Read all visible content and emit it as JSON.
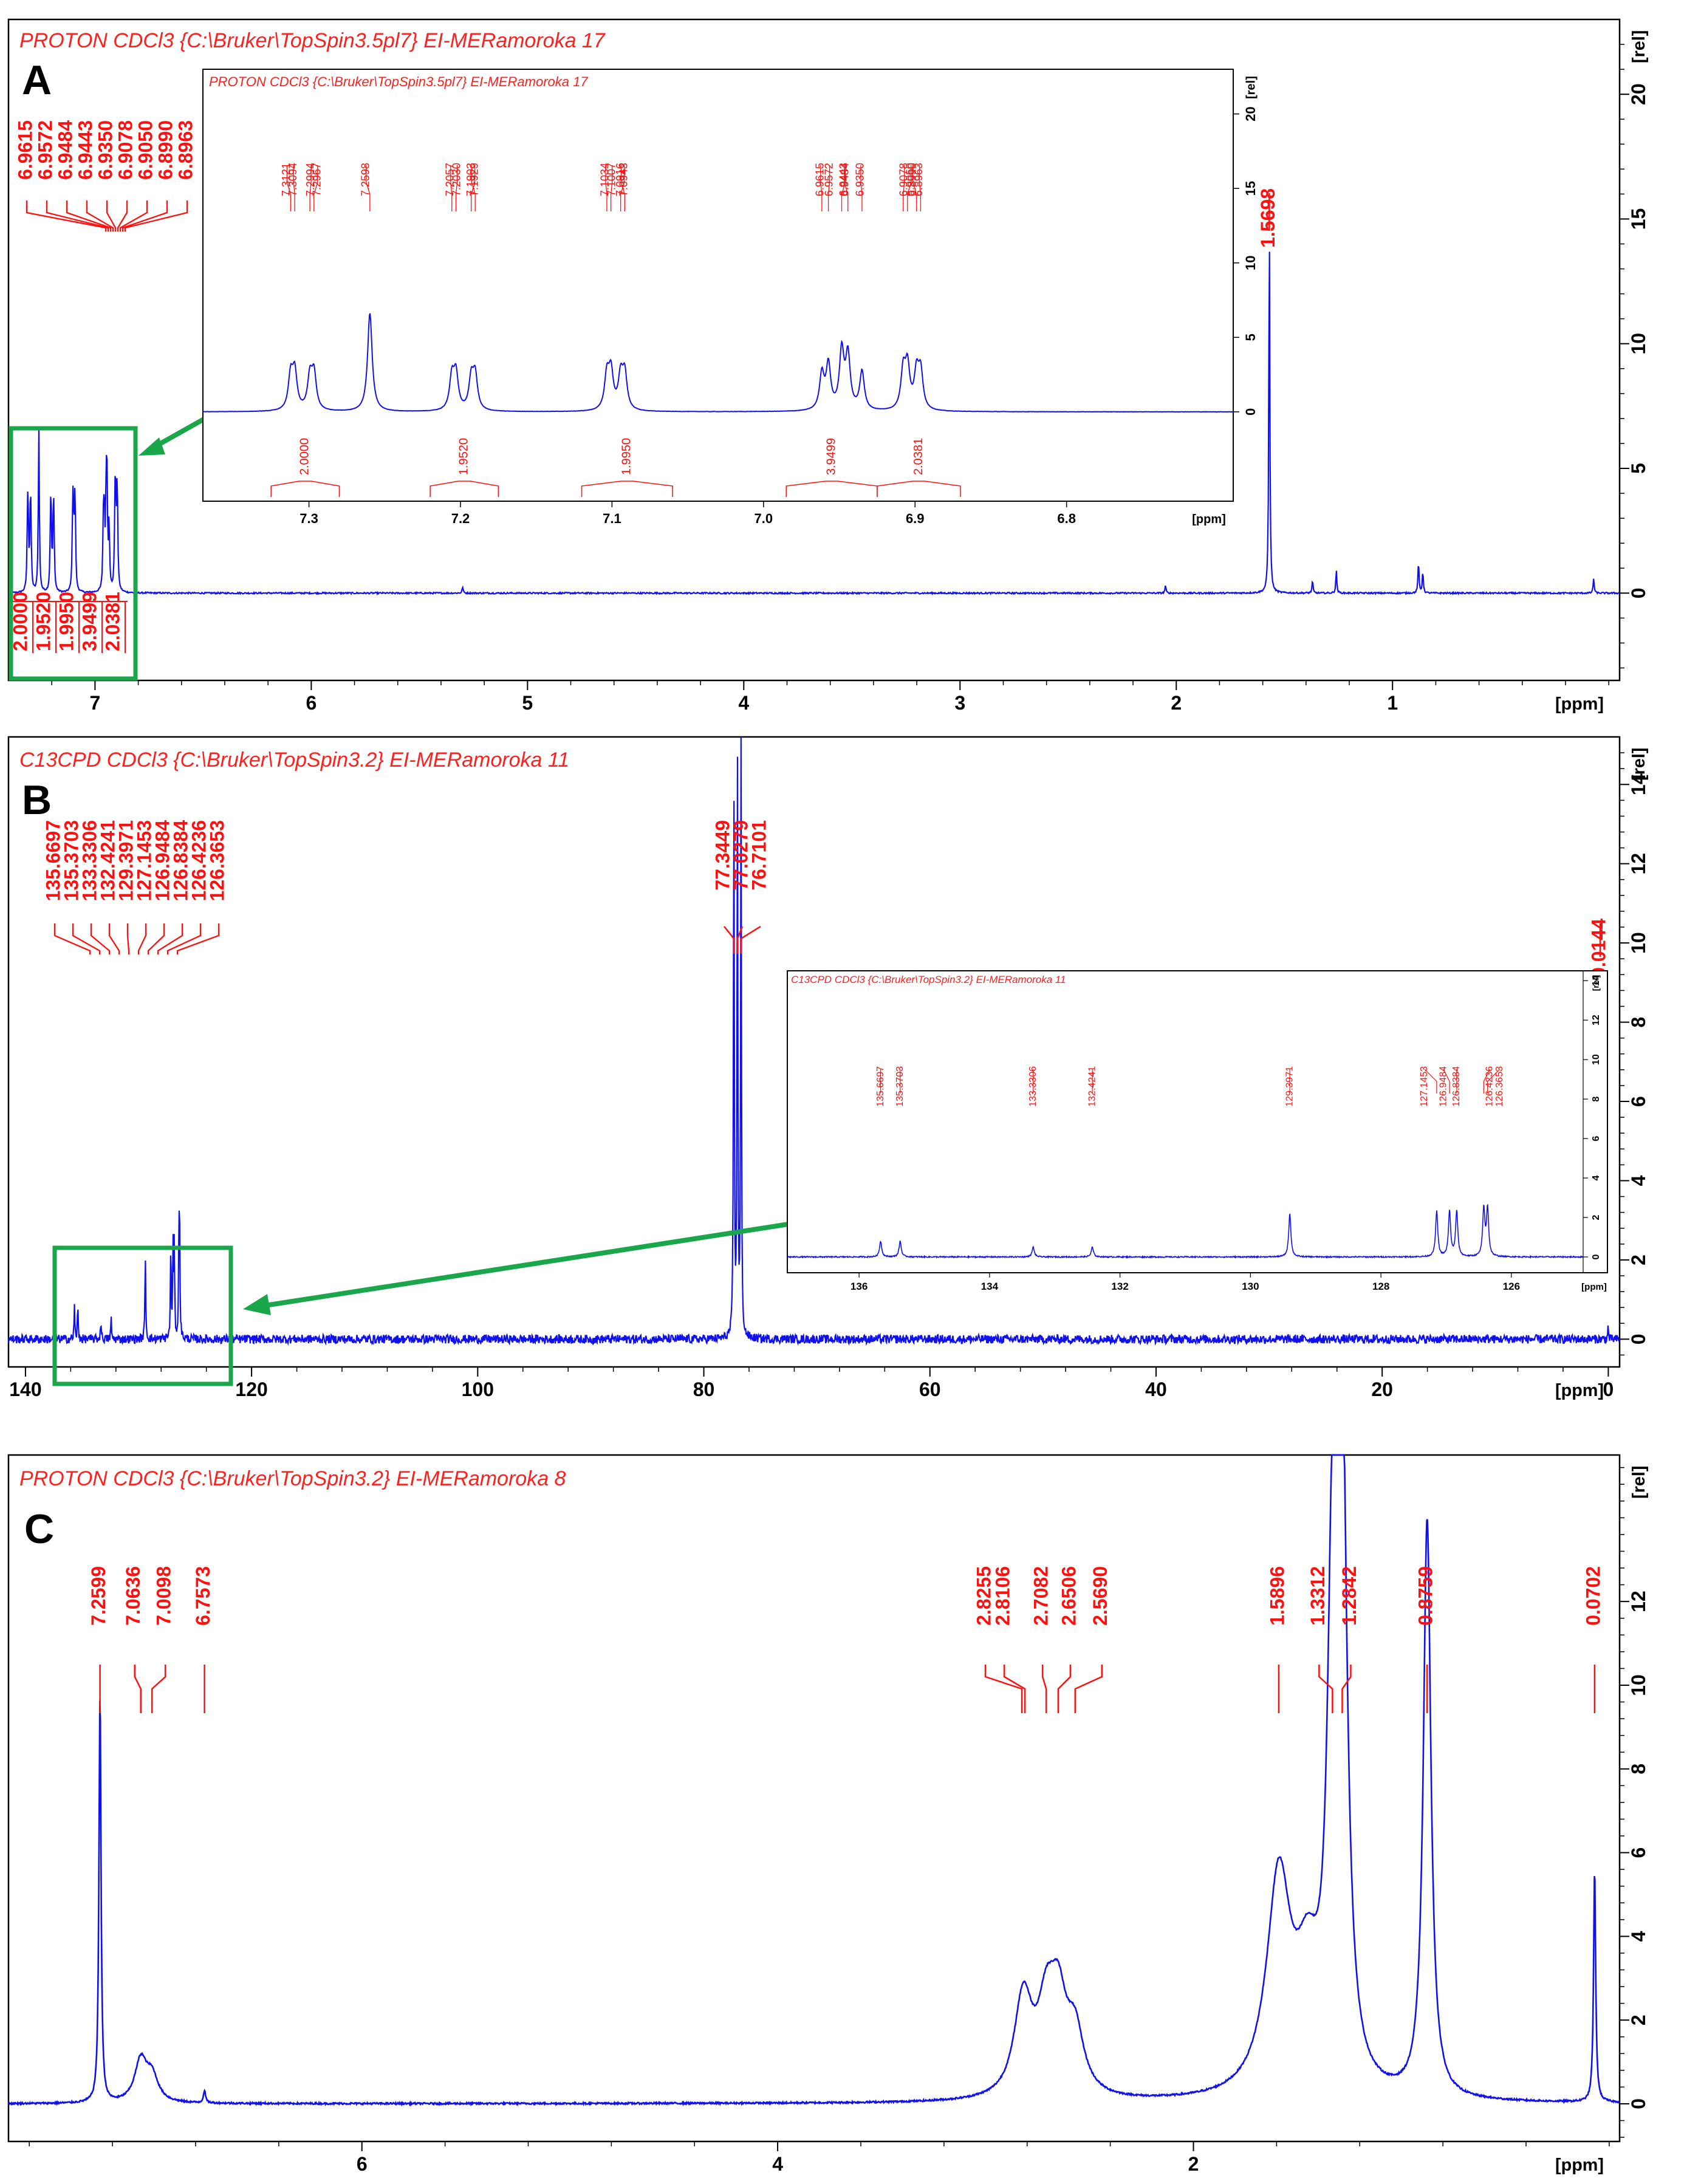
{
  "figure": {
    "panel_letters": [
      "A",
      "B",
      "C"
    ]
  },
  "chart_data": [
    {
      "type": "line",
      "panel": "A",
      "title": "PROTON CDCl3 {C:\\Bruker\\TopSpin3.5pl7} EI-MERamoroka 17",
      "xlabel": "[ppm]",
      "ylabel": "[rel]",
      "xlim": [
        7.4,
        -0.05
      ],
      "ylim": [
        -3.5,
        23
      ],
      "x_ticks": [
        7,
        6,
        5,
        4,
        3,
        2,
        1
      ],
      "y_ticks": [
        20,
        15,
        10,
        5,
        0
      ],
      "peaks": [
        {
          "x": 7.3121,
          "y": 2.3
        },
        {
          "x": 7.3094,
          "y": 2.5
        },
        {
          "x": 7.2994,
          "y": 2.2
        },
        {
          "x": 7.2967,
          "y": 2.4
        },
        {
          "x": 7.2598,
          "y": 6.6
        },
        {
          "x": 7.2057,
          "y": 2.2
        },
        {
          "x": 7.203,
          "y": 2.4
        },
        {
          "x": 7.1929,
          "y": 2.1
        },
        {
          "x": 7.1903,
          "y": 2.3
        },
        {
          "x": 7.1034,
          "y": 2.3
        },
        {
          "x": 7.1007,
          "y": 2.5
        },
        {
          "x": 7.0943,
          "y": 2.2
        },
        {
          "x": 7.0916,
          "y": 2.4
        },
        {
          "x": 6.9615,
          "y": 2.4
        },
        {
          "x": 6.9572,
          "y": 3.0
        },
        {
          "x": 6.9484,
          "y": 3.9
        },
        {
          "x": 6.9443,
          "y": 3.6
        },
        {
          "x": 6.935,
          "y": 2.6
        },
        {
          "x": 6.9078,
          "y": 2.6
        },
        {
          "x": 6.905,
          "y": 2.8
        },
        {
          "x": 6.899,
          "y": 2.4
        },
        {
          "x": 6.8963,
          "y": 2.5
        },
        {
          "x": 5.3,
          "y": 0.25
        },
        {
          "x": 2.05,
          "y": 0.3
        },
        {
          "x": 1.5698,
          "y": 15.0
        },
        {
          "x": 1.37,
          "y": 0.5
        },
        {
          "x": 1.26,
          "y": 0.9
        },
        {
          "x": 0.88,
          "y": 1.3
        },
        {
          "x": 0.86,
          "y": 0.9
        },
        {
          "x": 0.07,
          "y": 0.6
        }
      ],
      "peak_labels_main": [
        "6.9615",
        "6.9572",
        "6.9484",
        "6.9443",
        "6.9350",
        "6.9078",
        "6.9050",
        "6.8990",
        "6.8963"
      ],
      "peak_label_right": "1.5698",
      "integrals": [
        "2.0000",
        "1.9520",
        "1.9950",
        "3.9499",
        "2.0381"
      ],
      "inset": {
        "title": "PROTON CDCl3 {C:\\Bruker\\TopSpin3.5pl7} EI-MERamoroka 17",
        "xlim": [
          7.37,
          6.69
        ],
        "ylim": [
          -6,
          23
        ],
        "x_ticks": [
          7.3,
          7.2,
          7.1,
          7.0,
          6.9,
          6.8
        ],
        "y_ticks": [
          20,
          15,
          10,
          5,
          0
        ],
        "xlabel": "[ppm]",
        "ylabel": "[rel]",
        "peak_labels": [
          "7.3121",
          "7.3094",
          "7.2994",
          "7.2967",
          "7.2598",
          "7.2057",
          "7.2030",
          "7.1929",
          "7.1903",
          "7.1034",
          "7.1007",
          "7.0943",
          "7.0916",
          "6.9615",
          "6.9572",
          "6.9484",
          "6.9443",
          "6.9350",
          "6.9078",
          "6.9050",
          "6.8990",
          "6.8963"
        ],
        "integrals": [
          {
            "label": "2.0000",
            "from": 7.325,
            "to": 7.28
          },
          {
            "label": "1.9520",
            "from": 7.22,
            "to": 7.175
          },
          {
            "label": "1.9950",
            "from": 7.12,
            "to": 7.06
          },
          {
            "label": "3.9499",
            "from": 6.985,
            "to": 6.925
          },
          {
            "label": "2.0381",
            "from": 6.925,
            "to": 6.87
          }
        ]
      }
    },
    {
      "type": "line",
      "panel": "B",
      "title": "C13CPD CDCl3 {C:\\Bruker\\TopSpin3.2} EI-MERamoroka 11",
      "xlabel": "[ppm]",
      "ylabel": "[rel]",
      "xlim": [
        141.5,
        -1
      ],
      "ylim": [
        -0.7,
        15.2
      ],
      "x_ticks": [
        140,
        120,
        100,
        80,
        60,
        40,
        20,
        0
      ],
      "y_ticks": [
        14,
        12,
        10,
        8,
        6,
        4,
        2,
        0
      ],
      "peaks": [
        {
          "x": 135.6697,
          "y": 0.8
        },
        {
          "x": 135.3703,
          "y": 0.8
        },
        {
          "x": 133.3306,
          "y": 0.5
        },
        {
          "x": 132.4241,
          "y": 0.5
        },
        {
          "x": 129.3971,
          "y": 2.2
        },
        {
          "x": 127.1453,
          "y": 2.3
        },
        {
          "x": 126.9484,
          "y": 2.3
        },
        {
          "x": 126.8384,
          "y": 2.3
        },
        {
          "x": 126.4236,
          "y": 2.4
        },
        {
          "x": 126.3653,
          "y": 2.4
        },
        {
          "x": 77.3449,
          "y": 15.0
        },
        {
          "x": 77.0279,
          "y": 15.0
        },
        {
          "x": 76.7101,
          "y": 15.0
        },
        {
          "x": 0.0144,
          "y": 0.3
        }
      ],
      "peak_labels_main": [
        "135.6697",
        "135.3703",
        "133.3306",
        "132.4241",
        "129.3971",
        "127.1453",
        "126.9484",
        "126.8384",
        "126.4236",
        "126.3653"
      ],
      "peak_labels_mid": [
        "77.3449",
        "77.0279",
        "76.7101"
      ],
      "peak_label_right": "0.0144",
      "inset": {
        "title": "C13CPD CDCl3 {C:\\Bruker\\TopSpin3.2} EI-MERamoroka 11",
        "xlim": [
          137.1,
          124.9
        ],
        "ylim": [
          -0.8,
          14.5
        ],
        "x_ticks": [
          136,
          134,
          132,
          130,
          128,
          126
        ],
        "y_ticks": [
          14,
          12,
          10,
          8,
          6,
          4,
          2,
          0
        ],
        "xlabel": "[ppm]",
        "ylabel": "[rel]",
        "peak_labels": [
          "135.6697",
          "135.3703",
          "133.3306",
          "132.4241",
          "129.3971",
          "127.1453",
          "126.9484",
          "126.8384",
          "126.4236",
          "126.3653"
        ]
      }
    },
    {
      "type": "line",
      "panel": "C",
      "title": "PROTON CDCl3 {C:\\Bruker\\TopSpin3.2} EI-MERamoroka 8",
      "xlabel": "[ppm]",
      "ylabel": "[rel]",
      "xlim": [
        7.7,
        -0.05
      ],
      "ylim": [
        -0.9,
        15.5
      ],
      "x_ticks": [
        6,
        4,
        2
      ],
      "y_ticks": [
        12,
        10,
        8,
        6,
        4,
        2,
        0
      ],
      "peaks": [
        {
          "x": 7.2599,
          "y": 9.8
        },
        {
          "x": 7.0636,
          "y": 1.0
        },
        {
          "x": 7.0098,
          "y": 0.6
        },
        {
          "x": 6.7573,
          "y": 0.3
        },
        {
          "x": 2.8255,
          "y": 1.3
        },
        {
          "x": 2.8106,
          "y": 1.1
        },
        {
          "x": 2.7082,
          "y": 1.8
        },
        {
          "x": 2.6506,
          "y": 2.0
        },
        {
          "x": 2.569,
          "y": 1.4
        },
        {
          "x": 1.5896,
          "y": 5.1
        },
        {
          "x": 1.45,
          "y": 2.5
        },
        {
          "x": 1.3312,
          "y": 11.3
        },
        {
          "x": 1.2842,
          "y": 14.6
        },
        {
          "x": 0.8759,
          "y": 13.8
        },
        {
          "x": 0.0702,
          "y": 5.6
        }
      ],
      "peak_labels_main": [
        "7.2599",
        "7.0636",
        "7.0098",
        "6.7573",
        "2.8255",
        "2.8106",
        "2.7082",
        "2.6506",
        "2.5690",
        "1.5896",
        "1.3312",
        "1.2842",
        "0.8759",
        "0.0702"
      ]
    }
  ],
  "style": {
    "spectrum": "#1010ee",
    "labels": "#ff1010",
    "highlight": "#1aa64a",
    "axis": "#000000"
  }
}
